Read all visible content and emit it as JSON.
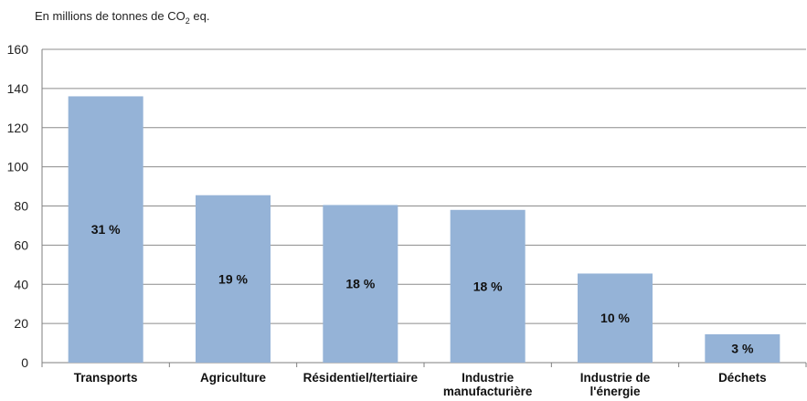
{
  "chart_data": {
    "type": "bar",
    "unit_label": {
      "prefix": "En millions de tonnes de CO",
      "subscript": "2",
      "suffix": " eq."
    },
    "categories": [
      [
        "Transports"
      ],
      [
        "Agriculture"
      ],
      [
        "Résidentiel/tertiaire"
      ],
      [
        "Industrie",
        "manufacturière"
      ],
      [
        "Industrie de",
        "l'énergie"
      ],
      [
        "Déchets"
      ]
    ],
    "values": [
      136,
      85.5,
      80.5,
      78,
      45.5,
      14.5
    ],
    "data_labels": [
      "31 %",
      "19 %",
      "18 %",
      "18 %",
      "10 %",
      "3 %"
    ],
    "ylim": [
      0,
      160
    ],
    "yticks": [
      0,
      20,
      40,
      60,
      80,
      100,
      120,
      140,
      160
    ],
    "grid": true,
    "legend": "none",
    "colors": {
      "bar": "#95B3D7",
      "grid": "#8C8C8C",
      "axis": "#7F7F7F"
    }
  }
}
